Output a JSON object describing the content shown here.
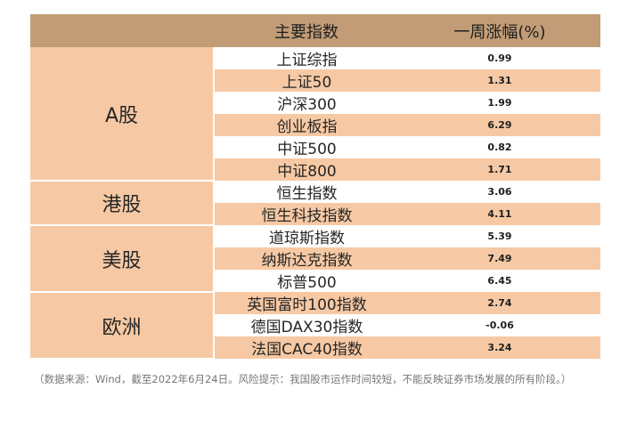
{
  "header": {
    "col_index": "主要指数",
    "col_change": "一周涨幅(%)"
  },
  "groups": [
    {
      "market": "A股",
      "rows": [
        {
          "name": "上证综指",
          "value": "0.99"
        },
        {
          "name": "上证50",
          "value": "1.31"
        },
        {
          "name": "沪深300",
          "value": "1.99"
        },
        {
          "name": "创业板指",
          "value": "6.29"
        },
        {
          "name": "中证500",
          "value": "0.82"
        },
        {
          "name": "中证800",
          "value": "1.71"
        }
      ]
    },
    {
      "market": "港股",
      "rows": [
        {
          "name": "恒生指数",
          "value": "3.06"
        },
        {
          "name": "恒生科技指数",
          "value": "4.11"
        }
      ]
    },
    {
      "market": "美股",
      "rows": [
        {
          "name": "道琼斯指数",
          "value": "5.39"
        },
        {
          "name": "纳斯达克指数",
          "value": "7.49"
        },
        {
          "name": "标普500",
          "value": "6.45"
        }
      ]
    },
    {
      "market": "欧洲",
      "rows": [
        {
          "name": "英国富时100指数",
          "value": "2.74"
        },
        {
          "name": "德国DAX30指数",
          "value": "-0.06"
        },
        {
          "name": "法国CAC40指数",
          "value": "3.24"
        }
      ]
    }
  ],
  "footnote": "（数据来源：Wind，截至2022年6月24日。风险提示：我国股市运作时间较短，不能反映证券市场发展的所有阶段。）",
  "colors": {
    "header_bg": "#c19c76",
    "row_alt_bg": "#f6c9a4",
    "row_plain_bg": "#ffffff"
  }
}
